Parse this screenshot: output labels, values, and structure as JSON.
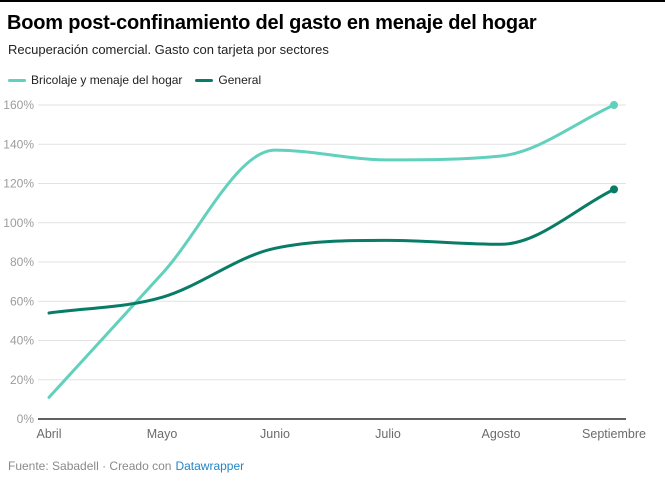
{
  "chart_data": {
    "type": "line",
    "title": "Boom post-confinamiento del gasto en menaje del hogar",
    "subtitle": "Recuperación comercial. Gasto con tarjeta por sectores",
    "categories": [
      "Abril",
      "Mayo",
      "Junio",
      "Julio",
      "Agosto",
      "Septiembre"
    ],
    "series": [
      {
        "name": "Bricolaje y menaje del hogar",
        "color": "#61d1bd",
        "values": [
          11,
          74,
          137,
          132,
          134,
          160
        ]
      },
      {
        "name": "General",
        "color": "#087c66",
        "values": [
          54,
          62,
          87,
          91,
          89,
          117
        ]
      }
    ],
    "ylim": [
      0,
      160
    ],
    "ytick_labels": [
      "0%",
      "20%",
      "40%",
      "60%",
      "80%",
      "100%",
      "120%",
      "140%",
      "160%"
    ],
    "grid": true,
    "legend_position": "top",
    "curve": "monotone",
    "end_dots": true
  },
  "footer": {
    "text": "Fuente: Sabadell · Creado con",
    "link_label": "Datawrapper",
    "link_color": "#2286c9"
  }
}
